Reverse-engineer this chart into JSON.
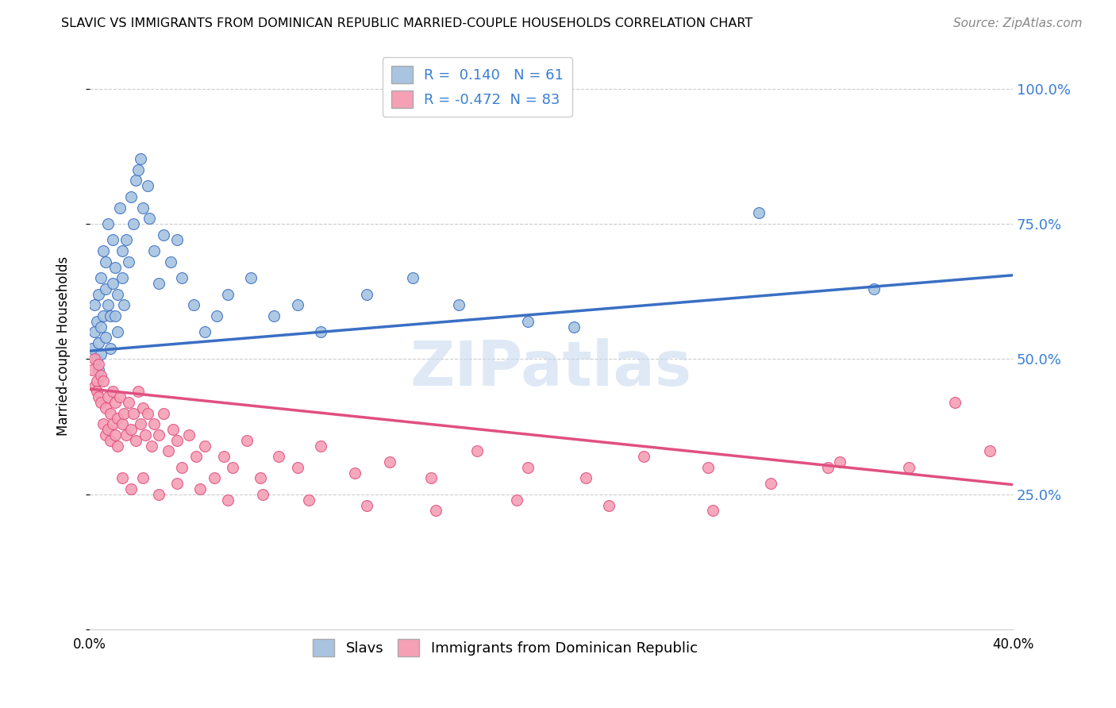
{
  "title": "SLAVIC VS IMMIGRANTS FROM DOMINICAN REPUBLIC MARRIED-COUPLE HOUSEHOLDS CORRELATION CHART",
  "source": "Source: ZipAtlas.com",
  "ylabel": "Married-couple Households",
  "xmin": 0.0,
  "xmax": 0.4,
  "ymin": 0.0,
  "ymax": 1.05,
  "legend_r_slavic": "0.140",
  "legend_n_slavic": "61",
  "legend_r_dominican": "-0.472",
  "legend_n_dominican": "83",
  "color_slavic": "#a8c4e0",
  "color_dominican": "#f5a0b5",
  "color_slavic_line": "#3a6fc4",
  "color_dominican_line": "#e05080",
  "watermark": "ZIPatlas",
  "slavic_x": [
    0.001,
    0.002,
    0.002,
    0.003,
    0.003,
    0.004,
    0.004,
    0.004,
    0.005,
    0.005,
    0.005,
    0.006,
    0.006,
    0.007,
    0.007,
    0.007,
    0.008,
    0.008,
    0.009,
    0.009,
    0.01,
    0.01,
    0.011,
    0.011,
    0.012,
    0.012,
    0.013,
    0.014,
    0.014,
    0.015,
    0.016,
    0.017,
    0.018,
    0.019,
    0.02,
    0.021,
    0.022,
    0.023,
    0.025,
    0.026,
    0.028,
    0.03,
    0.032,
    0.035,
    0.038,
    0.04,
    0.045,
    0.05,
    0.055,
    0.06,
    0.07,
    0.08,
    0.09,
    0.1,
    0.12,
    0.14,
    0.16,
    0.19,
    0.21,
    0.29,
    0.34
  ],
  "slavic_y": [
    0.52,
    0.55,
    0.6,
    0.5,
    0.57,
    0.48,
    0.53,
    0.62,
    0.51,
    0.56,
    0.65,
    0.58,
    0.7,
    0.54,
    0.63,
    0.68,
    0.6,
    0.75,
    0.52,
    0.58,
    0.64,
    0.72,
    0.58,
    0.67,
    0.55,
    0.62,
    0.78,
    0.7,
    0.65,
    0.6,
    0.72,
    0.68,
    0.8,
    0.75,
    0.83,
    0.85,
    0.87,
    0.78,
    0.82,
    0.76,
    0.7,
    0.64,
    0.73,
    0.68,
    0.72,
    0.65,
    0.6,
    0.55,
    0.58,
    0.62,
    0.65,
    0.58,
    0.6,
    0.55,
    0.62,
    0.65,
    0.6,
    0.57,
    0.56,
    0.77,
    0.63
  ],
  "dominican_x": [
    0.001,
    0.002,
    0.002,
    0.003,
    0.003,
    0.004,
    0.004,
    0.005,
    0.005,
    0.006,
    0.006,
    0.007,
    0.007,
    0.008,
    0.008,
    0.009,
    0.009,
    0.01,
    0.01,
    0.011,
    0.011,
    0.012,
    0.012,
    0.013,
    0.014,
    0.015,
    0.016,
    0.017,
    0.018,
    0.019,
    0.02,
    0.021,
    0.022,
    0.023,
    0.024,
    0.025,
    0.027,
    0.028,
    0.03,
    0.032,
    0.034,
    0.036,
    0.038,
    0.04,
    0.043,
    0.046,
    0.05,
    0.054,
    0.058,
    0.062,
    0.068,
    0.074,
    0.082,
    0.09,
    0.1,
    0.115,
    0.13,
    0.148,
    0.168,
    0.19,
    0.215,
    0.24,
    0.268,
    0.295,
    0.325,
    0.355,
    0.375,
    0.39,
    0.014,
    0.018,
    0.023,
    0.03,
    0.038,
    0.048,
    0.06,
    0.075,
    0.095,
    0.12,
    0.15,
    0.185,
    0.225,
    0.27,
    0.32
  ],
  "dominican_y": [
    0.48,
    0.5,
    0.45,
    0.46,
    0.44,
    0.49,
    0.43,
    0.47,
    0.42,
    0.46,
    0.38,
    0.41,
    0.36,
    0.43,
    0.37,
    0.4,
    0.35,
    0.44,
    0.38,
    0.42,
    0.36,
    0.39,
    0.34,
    0.43,
    0.38,
    0.4,
    0.36,
    0.42,
    0.37,
    0.4,
    0.35,
    0.44,
    0.38,
    0.41,
    0.36,
    0.4,
    0.34,
    0.38,
    0.36,
    0.4,
    0.33,
    0.37,
    0.35,
    0.3,
    0.36,
    0.32,
    0.34,
    0.28,
    0.32,
    0.3,
    0.35,
    0.28,
    0.32,
    0.3,
    0.34,
    0.29,
    0.31,
    0.28,
    0.33,
    0.3,
    0.28,
    0.32,
    0.3,
    0.27,
    0.31,
    0.3,
    0.42,
    0.33,
    0.28,
    0.26,
    0.28,
    0.25,
    0.27,
    0.26,
    0.24,
    0.25,
    0.24,
    0.23,
    0.22,
    0.24,
    0.23,
    0.22,
    0.3
  ]
}
